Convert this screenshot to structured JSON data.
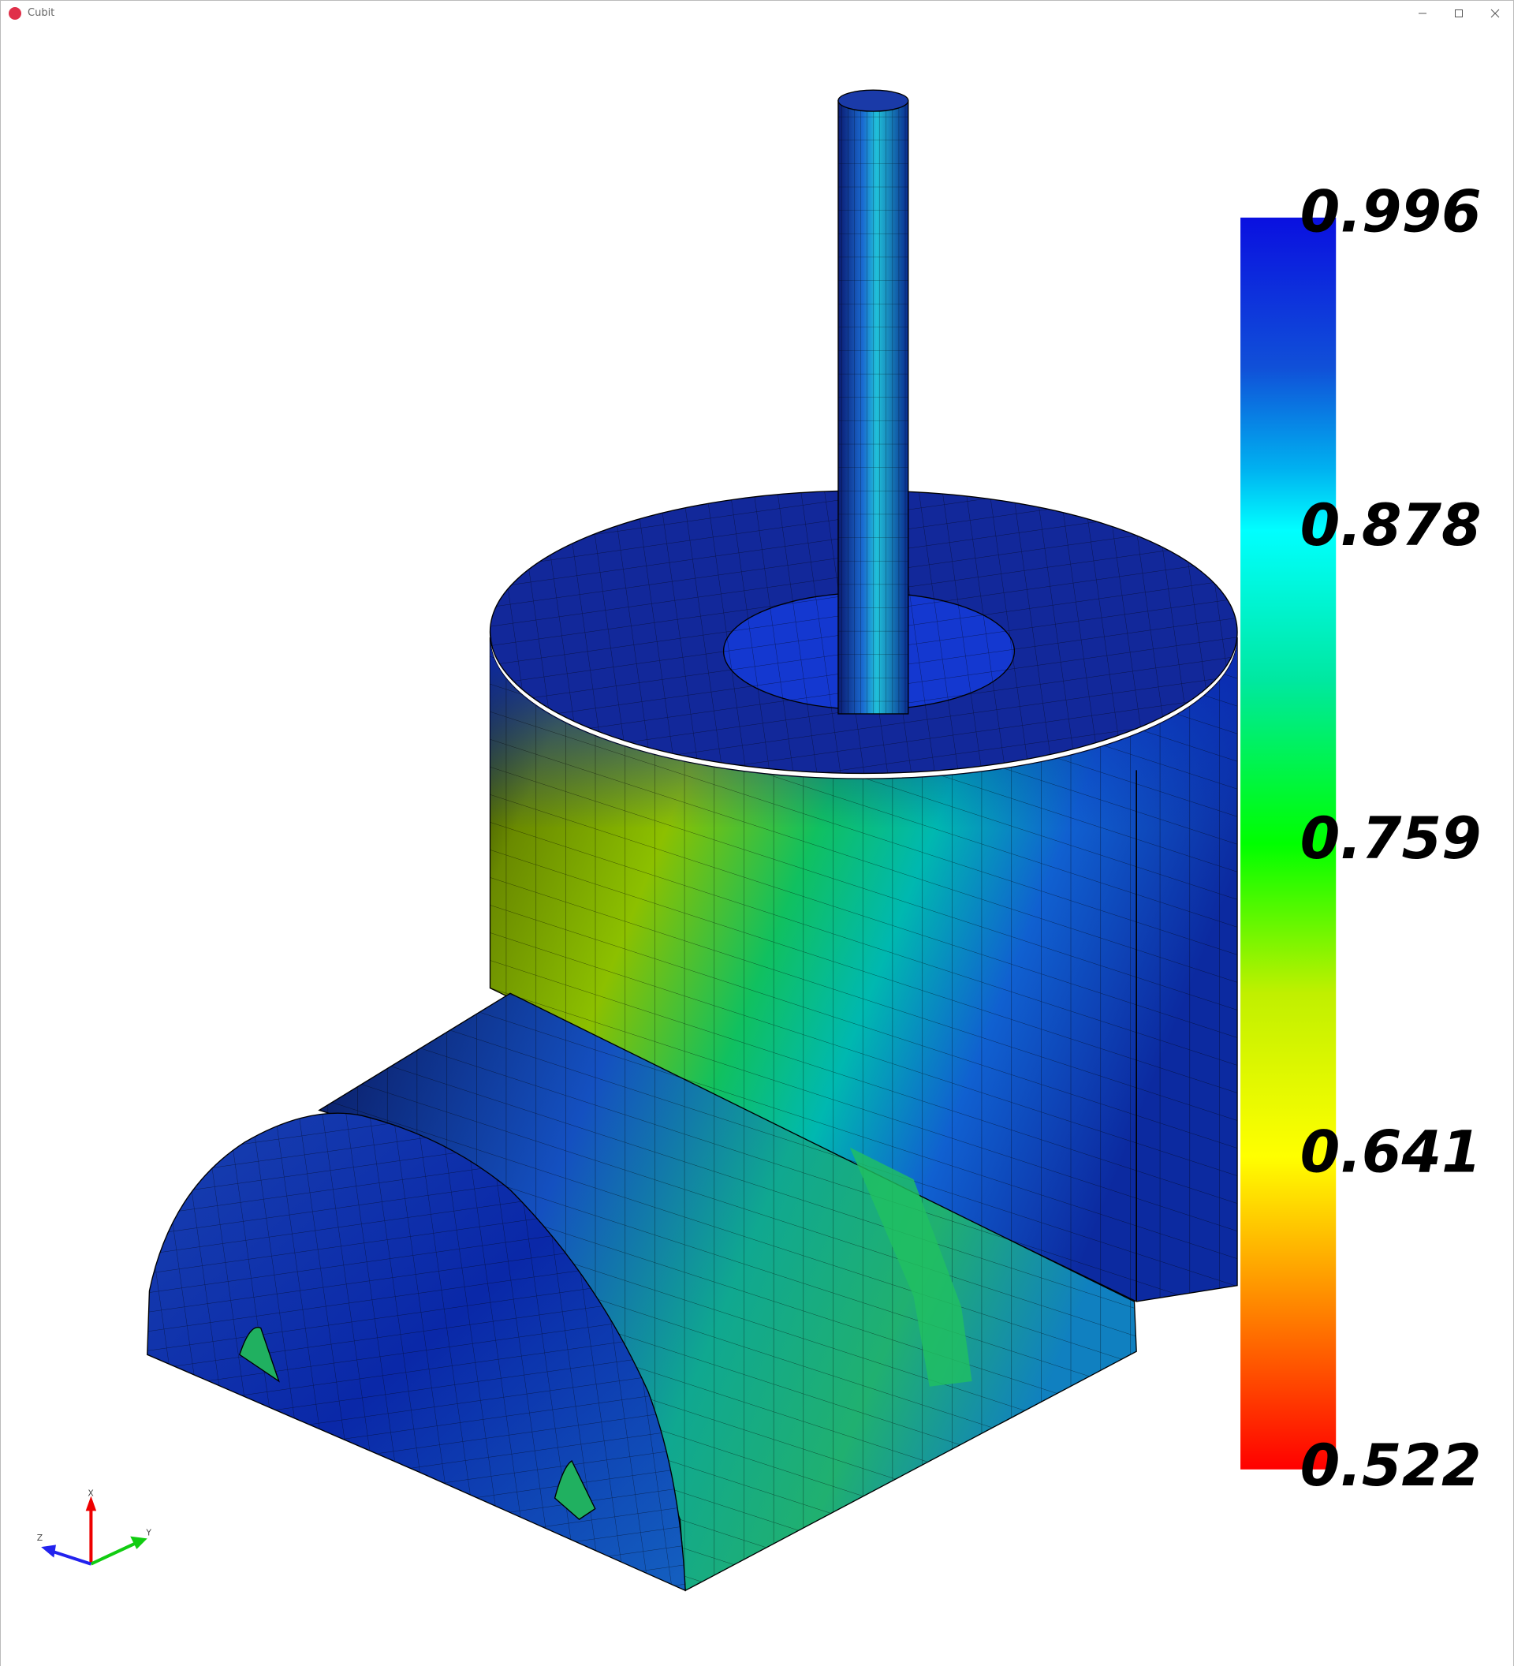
{
  "window": {
    "title": "Cubit"
  },
  "colorbar": {
    "labels": [
      0.996,
      0.878,
      0.759,
      0.641,
      0.522
    ]
  },
  "triad": {
    "x": "X",
    "y": "Y",
    "z": "Z"
  }
}
